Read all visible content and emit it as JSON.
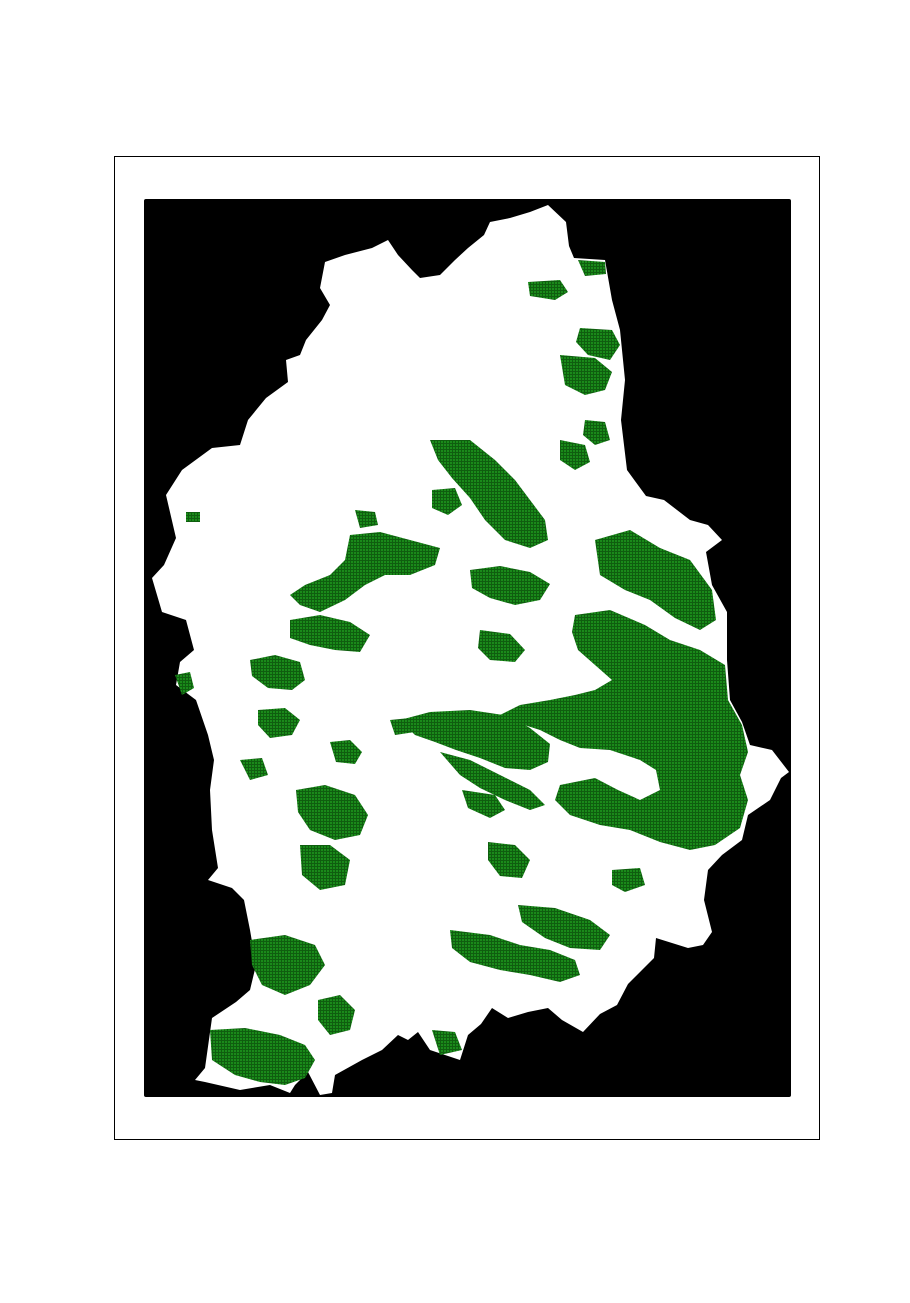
{
  "map": {
    "type": "raster-map",
    "legend": "none",
    "colors": {
      "background": "#000000",
      "region": "#ffffff",
      "cover": "#1a8a1a",
      "frame": "#000000"
    }
  }
}
